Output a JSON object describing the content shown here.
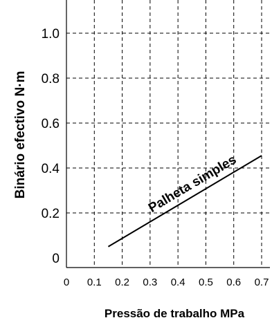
{
  "chart_data": {
    "type": "line",
    "title": "",
    "xlabel": "Pressão de trabalho MPa",
    "ylabel": "Binário efectivo  N·m",
    "xlim": [
      0,
      0.7
    ],
    "ylim": [
      0,
      1.1
    ],
    "x_ticks": [
      "0",
      "0.1",
      "0.2",
      "0.3",
      "0.4",
      "0.5",
      "0.6",
      "0.7"
    ],
    "y_ticks": [
      "0",
      "0.2",
      "0.4",
      "0.6",
      "0.8",
      "1.0"
    ],
    "grid": true,
    "series": [
      {
        "name": "Palheta simples",
        "x": [
          0.15,
          0.7
        ],
        "y": [
          0.05,
          0.455
        ]
      }
    ]
  }
}
